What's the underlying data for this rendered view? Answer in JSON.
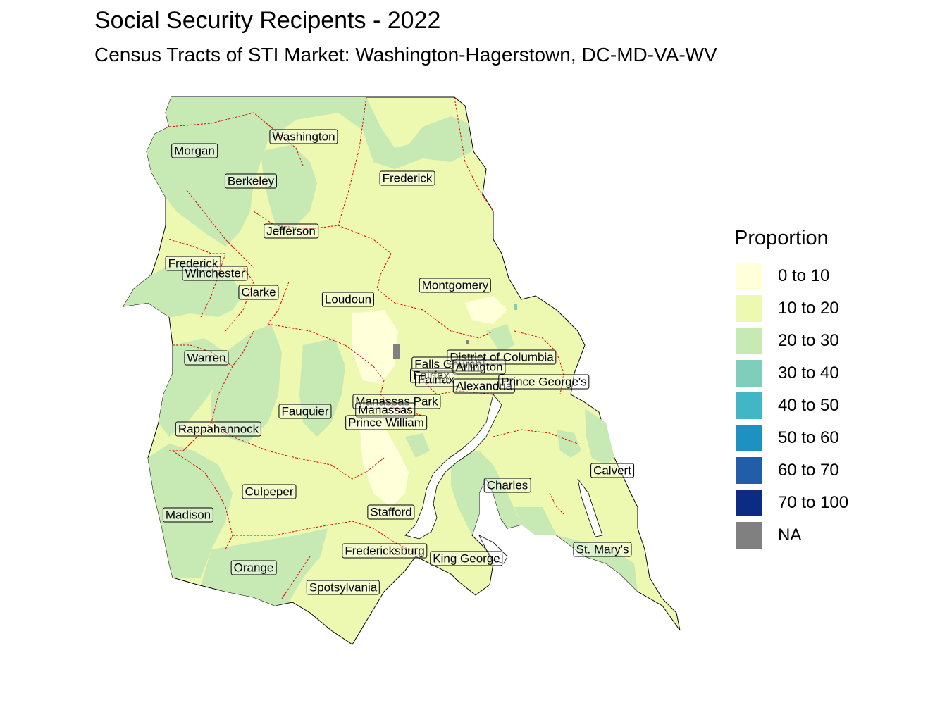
{
  "title": "Social Security Recipents - 2022",
  "subtitle": "Census Tracts of STI Market: Washington-Hagerstown, DC-MD-VA-WV",
  "legend": {
    "title": "Proportion",
    "items": [
      {
        "label": "0 to 10",
        "color": "#ffffd9"
      },
      {
        "label": "10 to 20",
        "color": "#edf8b1"
      },
      {
        "label": "20 to 30",
        "color": "#c7e9b4"
      },
      {
        "label": "30 to 40",
        "color": "#7fcdbb"
      },
      {
        "label": "40 to 50",
        "color": "#41b6c4"
      },
      {
        "label": "50 to 60",
        "color": "#1d91c0"
      },
      {
        "label": "60 to 70",
        "color": "#225ea8"
      },
      {
        "label": "70 to 100",
        "color": "#0c2c84"
      },
      {
        "label": "NA",
        "color": "#808080"
      }
    ]
  },
  "counties": [
    {
      "name": "Washington",
      "label_key": "washington"
    },
    {
      "name": "Morgan",
      "label_key": "morgan"
    },
    {
      "name": "Berkeley",
      "label_key": "berkeley"
    },
    {
      "name": "Frederick",
      "label_key": "frederick_md"
    },
    {
      "name": "Jefferson",
      "label_key": "jefferson"
    },
    {
      "name": "Frederick",
      "label_key": "frederick_va"
    },
    {
      "name": "Winchester",
      "label_key": "winchester"
    },
    {
      "name": "Clarke",
      "label_key": "clarke"
    },
    {
      "name": "Loudoun",
      "label_key": "loudoun"
    },
    {
      "name": "Montgomery",
      "label_key": "montgomery"
    },
    {
      "name": "District of Columbia",
      "label_key": "dc"
    },
    {
      "name": "Falls Church",
      "label_key": "falls_church"
    },
    {
      "name": "Arlington",
      "label_key": "arlington"
    },
    {
      "name": "Fairfax",
      "label_key": "fairfax_city"
    },
    {
      "name": "Fairfax",
      "label_key": "fairfax"
    },
    {
      "name": "Alexandria",
      "label_key": "alexandria"
    },
    {
      "name": "Prince George's",
      "label_key": "prince_georges"
    },
    {
      "name": "Warren",
      "label_key": "warren"
    },
    {
      "name": "Manassas Park",
      "label_key": "manassas_park"
    },
    {
      "name": "Manassas",
      "label_key": "manassas"
    },
    {
      "name": "Fauquier",
      "label_key": "fauquier"
    },
    {
      "name": "Prince William",
      "label_key": "prince_william"
    },
    {
      "name": "Rappahannock",
      "label_key": "rappahannock"
    },
    {
      "name": "Calvert",
      "label_key": "calvert"
    },
    {
      "name": "Charles",
      "label_key": "charles"
    },
    {
      "name": "Culpeper",
      "label_key": "culpeper"
    },
    {
      "name": "Stafford",
      "label_key": "stafford"
    },
    {
      "name": "Madison",
      "label_key": "madison"
    },
    {
      "name": "Fredericksburg",
      "label_key": "fredericksburg"
    },
    {
      "name": "King George",
      "label_key": "king_george"
    },
    {
      "name": "St. Mary's",
      "label_key": "st_marys"
    },
    {
      "name": "Orange",
      "label_key": "orange"
    },
    {
      "name": "Spotsylvania",
      "label_key": "spotsylvania"
    }
  ]
}
